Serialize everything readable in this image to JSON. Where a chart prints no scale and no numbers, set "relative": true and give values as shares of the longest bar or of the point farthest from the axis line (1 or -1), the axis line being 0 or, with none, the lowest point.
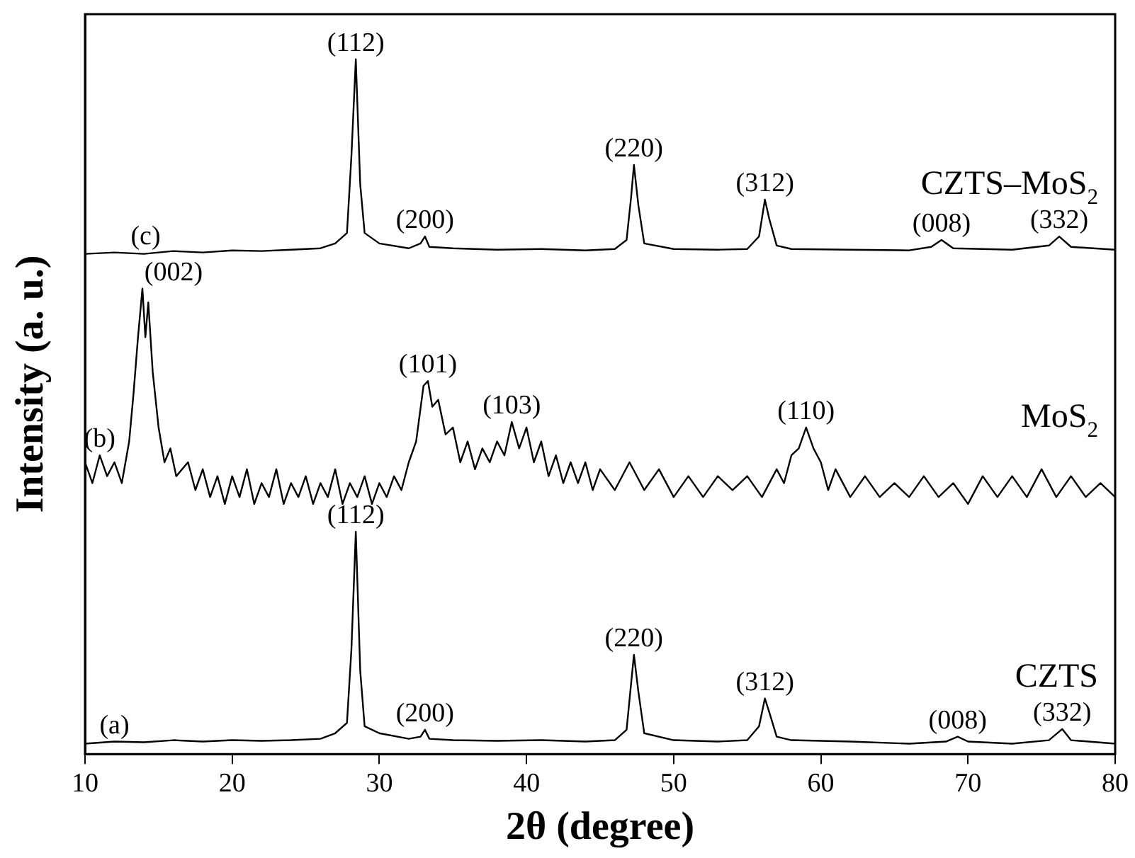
{
  "chart_data": {
    "type": "line",
    "relative": true,
    "xlabel": "2θ (degree)",
    "ylabel": "Intensity (a. u.)",
    "xlim": [
      10,
      80
    ],
    "xticks": [
      10,
      20,
      30,
      40,
      50,
      60,
      70,
      80
    ],
    "tick_labels": "x",
    "grid": false,
    "legend": false,
    "marker": "none",
    "line_style": "solid",
    "series": [
      {
        "name": "CZTS",
        "color": "#000000",
        "x": [
          10,
          12,
          14,
          16,
          18,
          20,
          22,
          24,
          26,
          27,
          27.8,
          28.1,
          28.4,
          28.7,
          29,
          30,
          32,
          32.8,
          33.1,
          33.4,
          35,
          38,
          41,
          44,
          46,
          46.8,
          47.1,
          47.3,
          47.6,
          48,
          50,
          53,
          55,
          55.8,
          56.2,
          56.5,
          57,
          58,
          62,
          66,
          68.5,
          69.3,
          70,
          73,
          75.5,
          76.4,
          77,
          80
        ],
        "values": [
          0.015,
          0.018,
          0.017,
          0.02,
          0.018,
          0.02,
          0.019,
          0.02,
          0.022,
          0.03,
          0.045,
          0.15,
          0.32,
          0.12,
          0.04,
          0.03,
          0.022,
          0.025,
          0.035,
          0.022,
          0.02,
          0.019,
          0.02,
          0.018,
          0.02,
          0.035,
          0.1,
          0.143,
          0.09,
          0.03,
          0.02,
          0.018,
          0.02,
          0.04,
          0.08,
          0.06,
          0.025,
          0.02,
          0.018,
          0.015,
          0.018,
          0.025,
          0.018,
          0.015,
          0.02,
          0.036,
          0.02,
          0.015
        ]
      },
      {
        "name": "MoS$_{2}$",
        "color": "#000000",
        "x": [
          10,
          10.5,
          11,
          11.5,
          12,
          12.5,
          13,
          13.3,
          13.6,
          13.9,
          14.1,
          14.3,
          14.6,
          15,
          15.4,
          15.8,
          16.2,
          17,
          17.5,
          18,
          18.5,
          19,
          19.5,
          20,
          20.5,
          21,
          21.5,
          22,
          22.5,
          23,
          23.5,
          24,
          24.5,
          25,
          25.5,
          26,
          26.5,
          27,
          27.5,
          28,
          28.5,
          29,
          29.5,
          30,
          30.5,
          31,
          31.5,
          32,
          32.5,
          33,
          33.3,
          33.6,
          34,
          34.5,
          35,
          35.5,
          36,
          36.5,
          37,
          37.5,
          38,
          38.5,
          39,
          39.5,
          40,
          40.5,
          41,
          41.5,
          42,
          42.5,
          43,
          43.5,
          44,
          44.5,
          45,
          46,
          47,
          48,
          49,
          50,
          51,
          52,
          53,
          54,
          55,
          56,
          57,
          57.5,
          58,
          58.5,
          59,
          59.5,
          60,
          60.5,
          61,
          62,
          63,
          64,
          65,
          66,
          67,
          68,
          69,
          70,
          71,
          72,
          73,
          74,
          75,
          76,
          77,
          78,
          79,
          80
        ],
        "values": [
          0.42,
          0.39,
          0.43,
          0.4,
          0.42,
          0.39,
          0.45,
          0.52,
          0.6,
          0.67,
          0.6,
          0.65,
          0.55,
          0.47,
          0.42,
          0.44,
          0.4,
          0.42,
          0.38,
          0.41,
          0.37,
          0.4,
          0.36,
          0.4,
          0.37,
          0.41,
          0.36,
          0.39,
          0.37,
          0.41,
          0.36,
          0.39,
          0.37,
          0.4,
          0.36,
          0.39,
          0.37,
          0.41,
          0.36,
          0.39,
          0.37,
          0.4,
          0.36,
          0.39,
          0.37,
          0.4,
          0.38,
          0.42,
          0.45,
          0.53,
          0.537,
          0.5,
          0.51,
          0.46,
          0.47,
          0.42,
          0.45,
          0.41,
          0.44,
          0.42,
          0.45,
          0.43,
          0.478,
          0.44,
          0.47,
          0.42,
          0.45,
          0.4,
          0.43,
          0.39,
          0.42,
          0.39,
          0.42,
          0.38,
          0.41,
          0.38,
          0.42,
          0.38,
          0.41,
          0.37,
          0.4,
          0.37,
          0.4,
          0.38,
          0.4,
          0.37,
          0.41,
          0.39,
          0.43,
          0.44,
          0.47,
          0.44,
          0.42,
          0.38,
          0.41,
          0.37,
          0.4,
          0.37,
          0.39,
          0.37,
          0.4,
          0.37,
          0.39,
          0.36,
          0.4,
          0.37,
          0.4,
          0.37,
          0.41,
          0.37,
          0.4,
          0.37,
          0.39,
          0.37
        ]
      },
      {
        "name": "CZTS–MoS$_{2}$",
        "color": "#000000",
        "x": [
          10,
          12,
          14,
          16,
          18,
          20,
          22,
          24,
          26,
          27,
          27.8,
          28.1,
          28.4,
          28.7,
          29,
          30,
          32,
          32.8,
          33.1,
          33.4,
          35,
          38,
          41,
          44,
          46,
          46.8,
          47.1,
          47.3,
          47.6,
          48,
          50,
          53,
          55,
          55.8,
          56.2,
          56.5,
          57,
          58,
          62,
          66,
          67.5,
          68.2,
          69,
          73,
          75.5,
          76.2,
          77,
          80
        ],
        "values": [
          0.72,
          0.722,
          0.72,
          0.724,
          0.722,
          0.725,
          0.724,
          0.726,
          0.728,
          0.735,
          0.75,
          0.86,
          1,
          0.82,
          0.75,
          0.735,
          0.728,
          0.735,
          0.745,
          0.73,
          0.728,
          0.726,
          0.727,
          0.725,
          0.727,
          0.74,
          0.8,
          0.848,
          0.79,
          0.735,
          0.727,
          0.726,
          0.727,
          0.745,
          0.798,
          0.77,
          0.732,
          0.727,
          0.726,
          0.725,
          0.73,
          0.74,
          0.728,
          0.726,
          0.732,
          0.745,
          0.73,
          0.726
        ]
      }
    ],
    "annotations": [
      {
        "text": "(112)",
        "x": 28.4,
        "y": 0.32
      },
      {
        "text": "(200)",
        "x": 33.1,
        "y": 0.035
      },
      {
        "text": "(220)",
        "x": 47.3,
        "y": 0.143
      },
      {
        "text": "(312)",
        "x": 56.2,
        "y": 0.08
      },
      {
        "text": "(008)",
        "x": 69.3,
        "y": 0.025
      },
      {
        "text": "(332)",
        "x": 76.4,
        "y": 0.036
      },
      {
        "text": "(002)",
        "x": 13.9,
        "y": 0.67
      },
      {
        "text": "(101)",
        "x": 33.3,
        "y": 0.537
      },
      {
        "text": "(103)",
        "x": 39,
        "y": 0.478
      },
      {
        "text": "(110)",
        "x": 59,
        "y": 0.47
      },
      {
        "text": "(112)",
        "x": 28.4,
        "y": 1
      },
      {
        "text": "(200)",
        "x": 33.1,
        "y": 0.745
      },
      {
        "text": "(220)",
        "x": 47.3,
        "y": 0.848
      },
      {
        "text": "(312)",
        "x": 56.2,
        "y": 0.798
      },
      {
        "text": "(008)",
        "x": 68.2,
        "y": 0.74
      },
      {
        "text": "(332)",
        "x": 76.2,
        "y": 0.745
      },
      {
        "text": "(a)",
        "x": 12,
        "y": 0.018
      },
      {
        "text": "(b)",
        "x": 11,
        "y": 0.43
      },
      {
        "text": "(c)",
        "x": 12,
        "y": 0.722
      }
    ]
  }
}
